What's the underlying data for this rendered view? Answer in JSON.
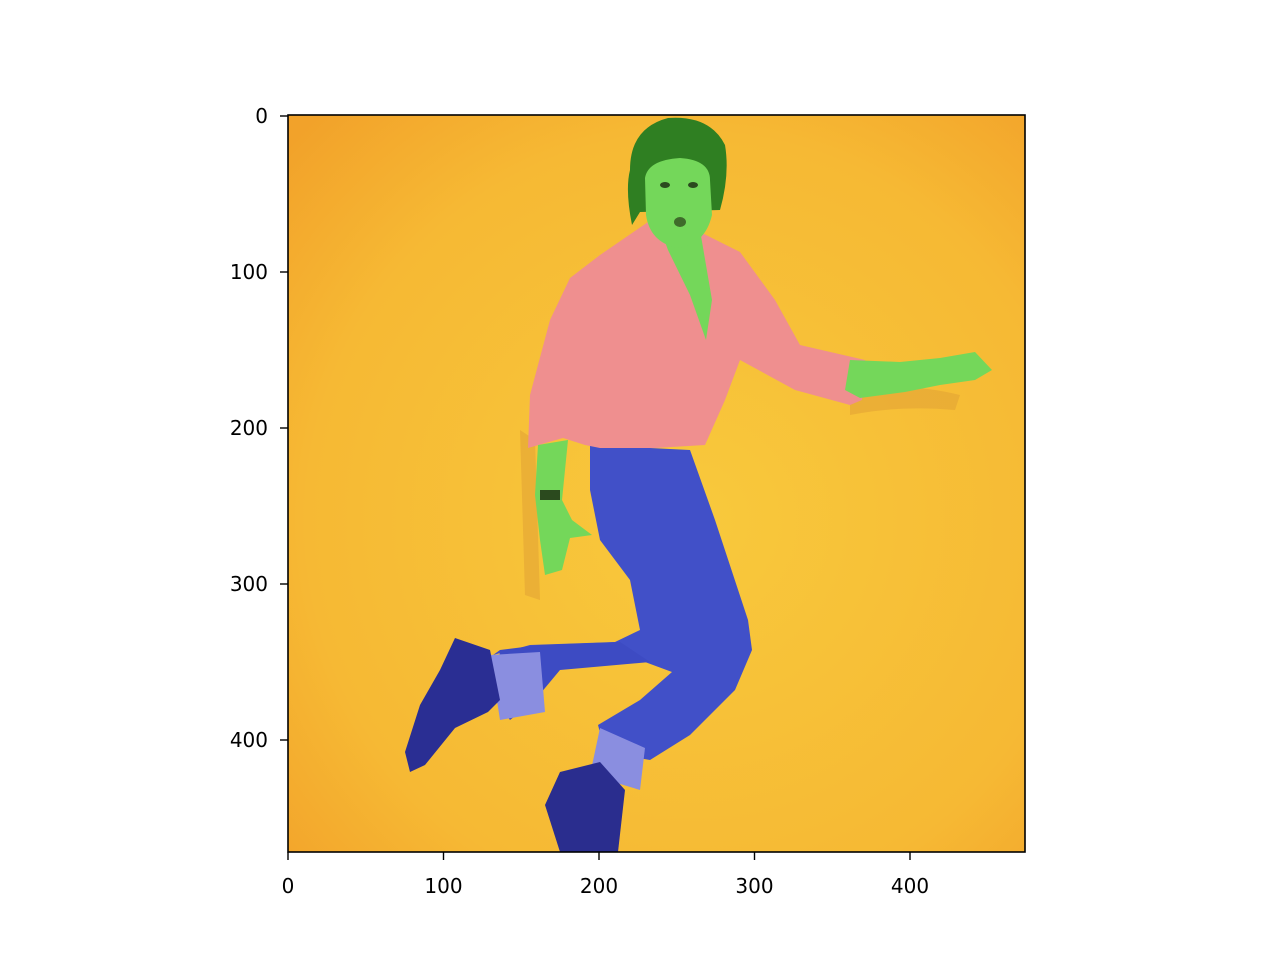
{
  "figure": {
    "background": "#ffffff",
    "image": {
      "description_colors": {
        "background": "#f6bd35",
        "background_edge": "#f2a22a",
        "skin_hair_mask": "#74d75a",
        "hair": "#2f7f22",
        "shirt_mask": "#ef8c8c",
        "jeans_mask": "#3f4fc7",
        "cuff_mask": "#8a8ee0",
        "shoe_mask": "#2a2d8e"
      },
      "extent_x": [
        0,
        474
      ],
      "extent_y": [
        474,
        0
      ]
    },
    "x_axis": {
      "ticks": [
        0,
        100,
        200,
        300,
        400
      ],
      "labels": [
        "0",
        "100",
        "200",
        "300",
        "400"
      ]
    },
    "y_axis": {
      "ticks": [
        0,
        100,
        200,
        300,
        400
      ],
      "labels": [
        "0",
        "100",
        "200",
        "300",
        "400"
      ]
    }
  }
}
